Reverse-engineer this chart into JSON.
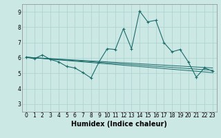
{
  "title": "",
  "xlabel": "Humidex (Indice chaleur)",
  "ylabel": "",
  "background_color": "#cce8e4",
  "line_color": "#1a6b6b",
  "grid_color": "#afd4cf",
  "xlim": [
    -0.5,
    23.5
  ],
  "ylim": [
    2.5,
    9.5
  ],
  "xticks": [
    0,
    1,
    2,
    3,
    4,
    5,
    6,
    7,
    8,
    9,
    10,
    11,
    12,
    13,
    14,
    15,
    16,
    17,
    18,
    19,
    20,
    21,
    22,
    23
  ],
  "yticks": [
    3,
    4,
    5,
    6,
    7,
    8,
    9
  ],
  "main_series": [
    [
      0,
      6.05
    ],
    [
      1,
      5.95
    ],
    [
      2,
      6.2
    ],
    [
      3,
      5.9
    ],
    [
      4,
      5.75
    ],
    [
      5,
      5.45
    ],
    [
      6,
      5.35
    ],
    [
      7,
      5.05
    ],
    [
      8,
      4.7
    ],
    [
      9,
      5.75
    ],
    [
      10,
      6.6
    ],
    [
      11,
      6.55
    ],
    [
      12,
      7.9
    ],
    [
      13,
      6.6
    ],
    [
      14,
      9.05
    ],
    [
      15,
      8.35
    ],
    [
      16,
      8.45
    ],
    [
      17,
      7.0
    ],
    [
      18,
      6.4
    ],
    [
      19,
      6.55
    ],
    [
      20,
      5.75
    ],
    [
      21,
      4.75
    ],
    [
      22,
      5.35
    ],
    [
      23,
      5.15
    ]
  ],
  "trend_lines": [
    [
      [
        0,
        6.05
      ],
      [
        23,
        5.05
      ]
    ],
    [
      [
        0,
        6.05
      ],
      [
        23,
        5.2
      ]
    ],
    [
      [
        0,
        6.05
      ],
      [
        23,
        5.35
      ]
    ]
  ],
  "xlabel_fontsize": 7,
  "tick_fontsize": 5.5
}
